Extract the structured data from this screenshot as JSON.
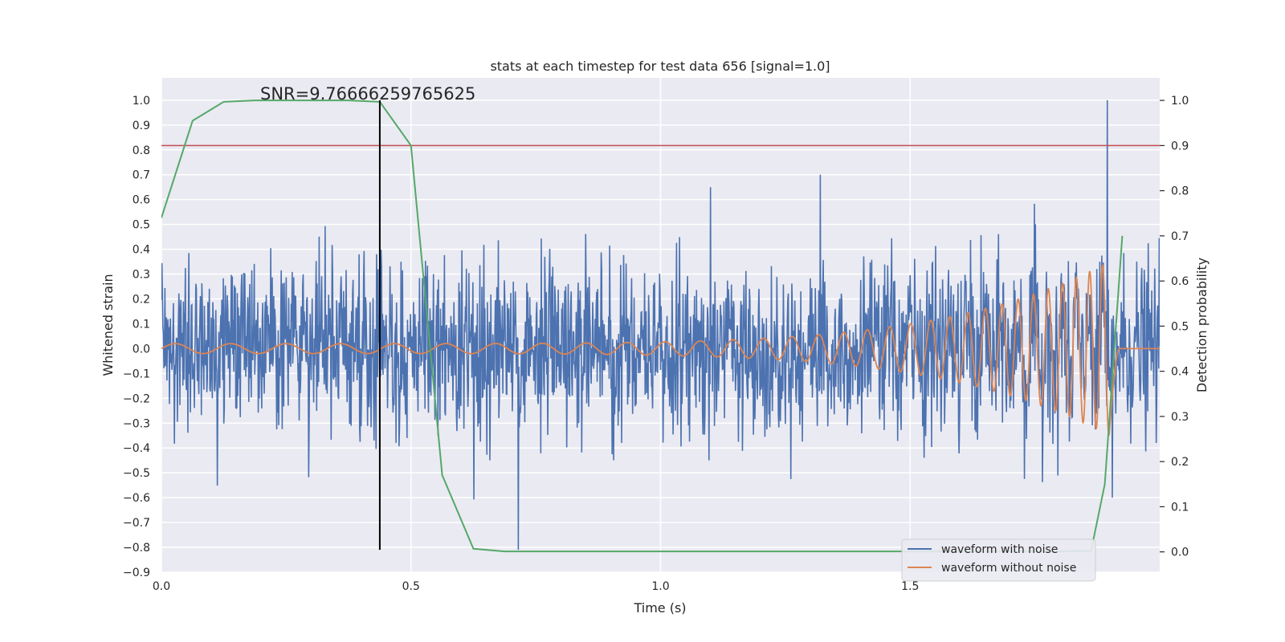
{
  "chart_data": {
    "type": "line",
    "title": "stats at each timestep for test data 656 [signal=1.0]",
    "xlabel": "Time (s)",
    "ylabel_left": "Whitened strain",
    "ylabel_right": "Detection probability",
    "xlim": [
      0.0,
      2.0
    ],
    "ylim_left": [
      -0.9,
      1.09
    ],
    "ylim_right": [
      -0.045,
      1.05
    ],
    "x_ticks": [
      "0.0",
      "0.5",
      "1.0",
      "1.5"
    ],
    "x_tick_values": [
      0.0,
      0.5,
      1.0,
      1.5
    ],
    "y_left_ticks": [
      "1.0",
      "0.9",
      "0.8",
      "0.7",
      "0.6",
      "0.5",
      "0.4",
      "0.3",
      "0.2",
      "0.1",
      "0.0",
      "−0.1",
      "−0.2",
      "−0.3",
      "−0.4",
      "−0.5",
      "−0.6",
      "−0.7",
      "−0.8",
      "−0.9"
    ],
    "y_left_tick_values": [
      1.0,
      0.9,
      0.8,
      0.7,
      0.6,
      0.5,
      0.4,
      0.3,
      0.2,
      0.1,
      0.0,
      -0.1,
      -0.2,
      -0.3,
      -0.4,
      -0.5,
      -0.6,
      -0.7,
      -0.8,
      -0.9
    ],
    "y_right_ticks": [
      "1.0",
      "0.9",
      "0.8",
      "0.7",
      "0.6",
      "0.5",
      "0.4",
      "0.3",
      "0.2",
      "0.1",
      "0.0"
    ],
    "y_right_tick_values": [
      1.0,
      0.9,
      0.8,
      0.7,
      0.6,
      0.5,
      0.4,
      0.3,
      0.2,
      0.1,
      0.0
    ],
    "grid": true,
    "background": "#eaeaf2",
    "annotation": "SNR=9.76666259765625",
    "series": [
      {
        "name": "waveform with noise",
        "axis": "left",
        "color": "#4c72b0",
        "description_peaks": [
          {
            "x": 1.895,
            "y": 1.0
          },
          {
            "x": 0.715,
            "y": -0.81
          },
          {
            "x": 1.1,
            "y": 0.65
          },
          {
            "x": 1.32,
            "y": 0.7
          },
          {
            "x": 1.905,
            "y": -0.6
          }
        ],
        "typical_range": [
          -0.45,
          0.45
        ]
      },
      {
        "name": "waveform without noise",
        "axis": "left",
        "color": "#dd8452",
        "start_frequency_hz": 9,
        "end_frequency_hz": 40,
        "start_amplitude": 0.02,
        "peak_amplitude": 0.35,
        "merger_time": 1.9,
        "end_time": 1.92
      },
      {
        "axis": "right",
        "color": "#55a868",
        "x": [
          0.0,
          0.0625,
          0.125,
          0.1875,
          0.25,
          0.3125,
          0.375,
          0.4375,
          0.5,
          0.5625,
          0.625,
          0.6875,
          0.75,
          1.0,
          1.5,
          1.7,
          1.8,
          1.8625,
          1.89,
          1.925
        ],
        "y": [
          0.74,
          0.955,
          0.997,
          1.0,
          1.0,
          1.0,
          1.0,
          0.997,
          0.9,
          0.17,
          0.007,
          0.001,
          0.001,
          0.001,
          0.001,
          0.001,
          0.001,
          0.002,
          0.15,
          0.7
        ]
      }
    ],
    "threshold_right": 0.9,
    "threshold_color": "#c44e52",
    "marker_x": 0.4375,
    "marker_bottom_left": -0.81,
    "marker_top_left": 1.0
  },
  "legend": {
    "items": [
      {
        "label": "waveform with noise",
        "color": "#4c72b0"
      },
      {
        "label": "waveform without noise",
        "color": "#dd8452"
      }
    ]
  }
}
